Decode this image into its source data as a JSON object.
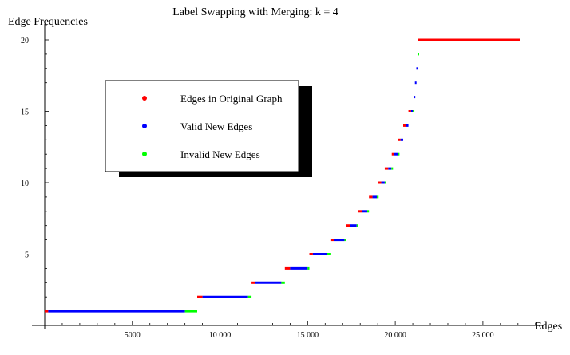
{
  "chart_data": {
    "type": "scatter",
    "title": "Label Swapping with Merging: k = 4",
    "xlabel": "Edges",
    "ylabel": "Edge Frequencies",
    "xlim": [
      0,
      28500
    ],
    "ylim": [
      0,
      21
    ],
    "xticks": [
      {
        "value": 5000,
        "label": "5000"
      },
      {
        "value": 10000,
        "label": "10 000"
      },
      {
        "value": 15000,
        "label": "15 000"
      },
      {
        "value": 20000,
        "label": "20 000"
      },
      {
        "value": 25000,
        "label": "25 000"
      }
    ],
    "yticks": [
      {
        "value": 5,
        "label": "5"
      },
      {
        "value": 10,
        "label": "10"
      },
      {
        "value": 15,
        "label": "15"
      },
      {
        "value": 20,
        "label": "20"
      }
    ],
    "legend": {
      "position": "top-left",
      "entries": [
        {
          "label": "Edges in Original Graph",
          "color": "#ff0000"
        },
        {
          "label": "Valid New Edges",
          "color": "#0000ff"
        },
        {
          "label": "Invalid New Edges",
          "color": "#00ff00"
        }
      ]
    },
    "colors": {
      "original": "#ff0000",
      "valid": "#0000ff",
      "invalid": "#00ff00"
    },
    "series": [
      {
        "name": "Edges in Original Graph",
        "segments": [
          {
            "y": 1,
            "x_start": 0,
            "x_end": 200
          },
          {
            "y": 2,
            "x_start": 8700,
            "x_end": 9000
          },
          {
            "y": 3,
            "x_start": 11800,
            "x_end": 12000
          },
          {
            "y": 4,
            "x_start": 13700,
            "x_end": 14000
          },
          {
            "y": 5,
            "x_start": 15100,
            "x_end": 15300
          },
          {
            "y": 6,
            "x_start": 16300,
            "x_end": 16500
          },
          {
            "y": 7,
            "x_start": 17200,
            "x_end": 17400
          },
          {
            "y": 8,
            "x_start": 17900,
            "x_end": 18100
          },
          {
            "y": 9,
            "x_start": 18500,
            "x_end": 18700
          },
          {
            "y": 10,
            "x_start": 19000,
            "x_end": 19200
          },
          {
            "y": 11,
            "x_start": 19400,
            "x_end": 19600
          },
          {
            "y": 12,
            "x_start": 19800,
            "x_end": 19950
          },
          {
            "y": 13,
            "x_start": 20150,
            "x_end": 20300
          },
          {
            "y": 14,
            "x_start": 20450,
            "x_end": 20600
          },
          {
            "y": 15,
            "x_start": 20750,
            "x_end": 20900
          },
          {
            "y": 20,
            "x_start": 21300,
            "x_end": 27100
          }
        ]
      },
      {
        "name": "Valid New Edges",
        "segments": [
          {
            "y": 1,
            "x_start": 200,
            "x_end": 8000
          },
          {
            "y": 2,
            "x_start": 9000,
            "x_end": 11600
          },
          {
            "y": 3,
            "x_start": 12000,
            "x_end": 13500
          },
          {
            "y": 4,
            "x_start": 14000,
            "x_end": 15000
          },
          {
            "y": 5,
            "x_start": 15300,
            "x_end": 16100
          },
          {
            "y": 6,
            "x_start": 16500,
            "x_end": 17100
          },
          {
            "y": 7,
            "x_start": 17400,
            "x_end": 17800
          },
          {
            "y": 8,
            "x_start": 18100,
            "x_end": 18400
          },
          {
            "y": 9,
            "x_start": 18700,
            "x_end": 18950
          },
          {
            "y": 10,
            "x_start": 19200,
            "x_end": 19400
          },
          {
            "y": 11,
            "x_start": 19600,
            "x_end": 19780
          },
          {
            "y": 12,
            "x_start": 19950,
            "x_end": 20150
          },
          {
            "y": 13,
            "x_start": 20300,
            "x_end": 20450
          },
          {
            "y": 14,
            "x_start": 20600,
            "x_end": 20750
          },
          {
            "y": 15,
            "x_start": 20900,
            "x_end": 21000
          },
          {
            "y": 16,
            "x_start": 21050,
            "x_end": 21120
          },
          {
            "y": 17,
            "x_start": 21120,
            "x_end": 21200
          },
          {
            "y": 18,
            "x_start": 21200,
            "x_end": 21270
          }
        ]
      },
      {
        "name": "Invalid New Edges",
        "segments": [
          {
            "y": 1,
            "x_start": 8000,
            "x_end": 8700
          },
          {
            "y": 2,
            "x_start": 11600,
            "x_end": 11800
          },
          {
            "y": 3,
            "x_start": 13500,
            "x_end": 13700
          },
          {
            "y": 4,
            "x_start": 15000,
            "x_end": 15100
          },
          {
            "y": 5,
            "x_start": 16100,
            "x_end": 16300
          },
          {
            "y": 6,
            "x_start": 17100,
            "x_end": 17200
          },
          {
            "y": 7,
            "x_start": 17800,
            "x_end": 17900
          },
          {
            "y": 8,
            "x_start": 18400,
            "x_end": 18500
          },
          {
            "y": 9,
            "x_start": 18950,
            "x_end": 19050
          },
          {
            "y": 10,
            "x_start": 19400,
            "x_end": 19450
          },
          {
            "y": 11,
            "x_start": 19780,
            "x_end": 19830
          },
          {
            "y": 12,
            "x_start": 20150,
            "x_end": 20200
          },
          {
            "y": 15,
            "x_start": 21000,
            "x_end": 21050
          },
          {
            "y": 19,
            "x_start": 21270,
            "x_end": 21330
          }
        ]
      }
    ]
  }
}
